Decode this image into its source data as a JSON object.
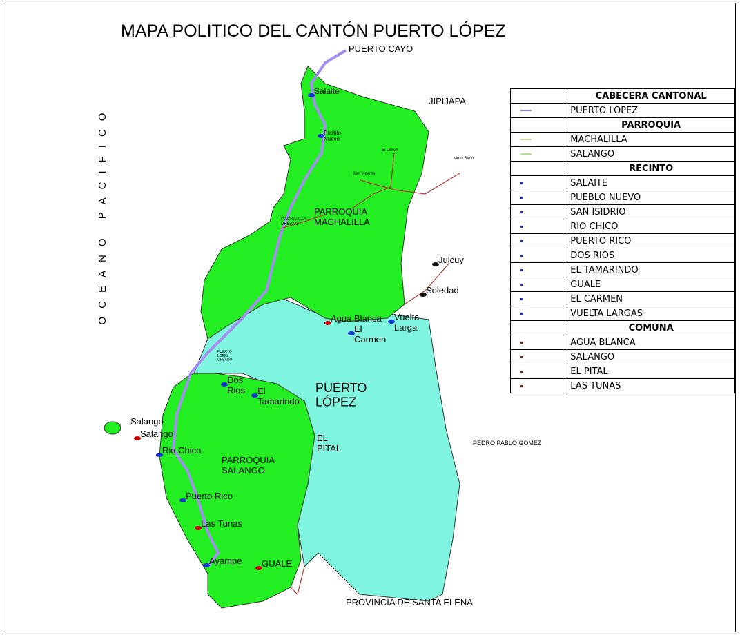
{
  "title": "MAPA POLITICO DEL CANTÓN PUERTO LÓPEZ",
  "ocean_label": "OCEANO PACIFICO",
  "places": [
    {
      "label": "PUERTO CAYO"
    },
    {
      "label": "JIPIJAPA"
    },
    {
      "label": "Salaite"
    },
    {
      "label": "Pueblo Nuevo"
    },
    {
      "label": "PARROQUIA MACHALILLA"
    },
    {
      "label": "Julcuy"
    },
    {
      "label": "Soledad"
    },
    {
      "label": "Agua Blanca"
    },
    {
      "label": "Vuelta Larga"
    },
    {
      "label": "El Carmen"
    },
    {
      "label": "PUERTO LÓPEZ"
    },
    {
      "label": "Dos Rios"
    },
    {
      "label": "El Tamarindo"
    },
    {
      "label": "Salango"
    },
    {
      "label": "Salango"
    },
    {
      "label": "Rio Chico"
    },
    {
      "label": "EL PITAL"
    },
    {
      "label": "PARROQUIA SALANGO"
    },
    {
      "label": "PEDRO PABLO GOMEZ"
    },
    {
      "label": "Puerto Rico"
    },
    {
      "label": "Las Tunas"
    },
    {
      "label": "Ayampe"
    },
    {
      "label": "GUALE"
    },
    {
      "label": "PROVINCIA DE SANTA ELENA"
    },
    {
      "label": "El Limon"
    },
    {
      "label": "San Vicente"
    },
    {
      "label": "Mero Seco"
    },
    {
      "label": "MACHALILLA URBANO"
    },
    {
      "label": "PUERTO LOPEZ URBANO"
    }
  ],
  "legend": [
    {
      "heading": "CABECERA CANTONAL",
      "items": [
        "PUERTO LOPEZ"
      ]
    },
    {
      "heading": "PARROQUIA",
      "items": [
        "MACHALILLA",
        "SALANGO"
      ]
    },
    {
      "heading": "RECINTO",
      "items": [
        "SALAITE",
        "PUEBLO NUEVO",
        "SAN ISIDRIO",
        "RIO CHICO",
        "PUERTO RICO",
        "DOS RIOS",
        "EL TAMARINDO",
        "GUALE",
        "EL CARMEN",
        "VUELTA LARGAS"
      ]
    },
    {
      "heading": "COMUNA",
      "items": [
        "AGUA BLANCA",
        "SALANGO",
        "EL PITAL",
        "LAS TUNAS"
      ]
    }
  ]
}
